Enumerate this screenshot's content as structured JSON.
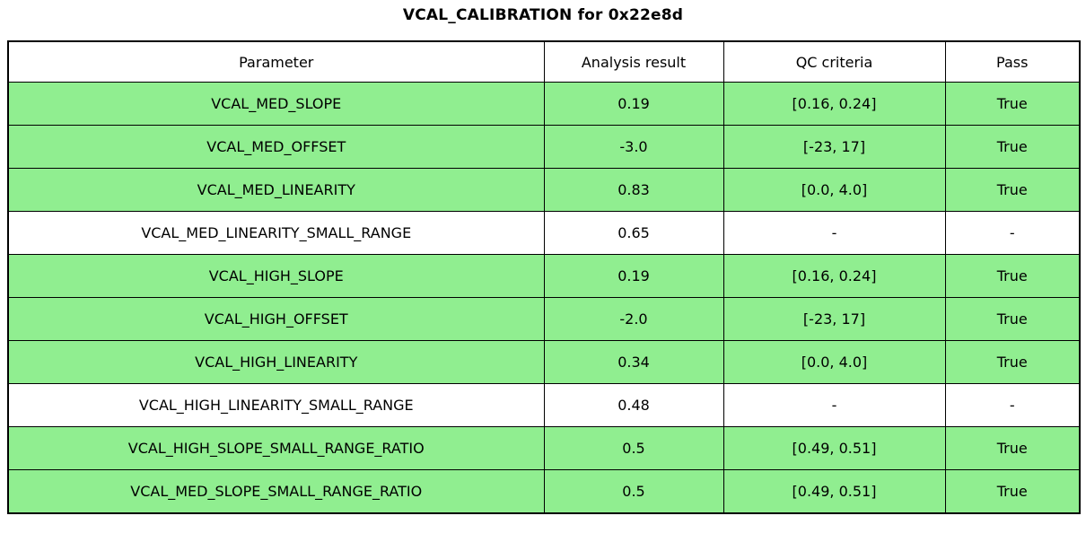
{
  "chart_data": {
    "type": "table",
    "title": "VCAL_CALIBRATION for 0x22e8d",
    "columns": [
      "Parameter",
      "Analysis result",
      "QC criteria",
      "Pass"
    ],
    "rows": [
      [
        "VCAL_MED_SLOPE",
        "0.19",
        "[0.16, 0.24]",
        "True"
      ],
      [
        "VCAL_MED_OFFSET",
        "-3.0",
        "[-23, 17]",
        "True"
      ],
      [
        "VCAL_MED_LINEARITY",
        "0.83",
        "[0.0, 4.0]",
        "True"
      ],
      [
        "VCAL_MED_LINEARITY_SMALL_RANGE",
        "0.65",
        "-",
        "-"
      ],
      [
        "VCAL_HIGH_SLOPE",
        "0.19",
        "[0.16, 0.24]",
        "True"
      ],
      [
        "VCAL_HIGH_OFFSET",
        "-2.0",
        "[-23, 17]",
        "True"
      ],
      [
        "VCAL_HIGH_LINEARITY",
        "0.34",
        "[0.0, 4.0]",
        "True"
      ],
      [
        "VCAL_HIGH_LINEARITY_SMALL_RANGE",
        "0.48",
        "-",
        "-"
      ],
      [
        "VCAL_HIGH_SLOPE_SMALL_RANGE_RATIO",
        "0.5",
        "[0.49, 0.51]",
        "True"
      ],
      [
        "VCAL_MED_SLOPE_SMALL_RANGE_RATIO",
        "0.5",
        "[0.49, 0.51]",
        "True"
      ]
    ],
    "row_highlight": [
      true,
      true,
      true,
      false,
      true,
      true,
      true,
      false,
      true,
      true
    ],
    "colors": {
      "pass_row_background": "#90EE90",
      "neutral_row_background": "#FFFFFF",
      "border": "#000000",
      "text": "#000000"
    },
    "legend_position": "none",
    "grid": true
  }
}
